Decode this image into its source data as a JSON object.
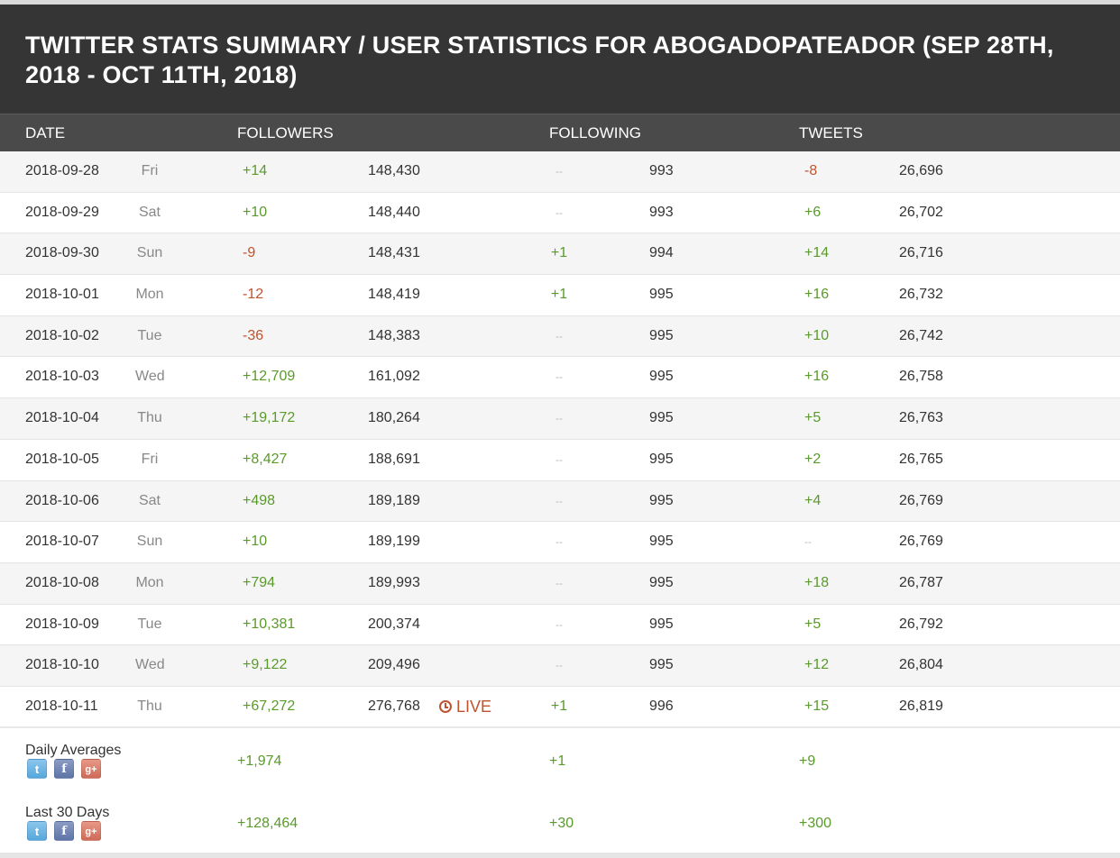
{
  "title": "TWITTER STATS SUMMARY / USER STATISTICS FOR ABOGADOPATEADOR (SEP 28TH, 2018 - OCT 11TH, 2018)",
  "headers": {
    "date": "DATE",
    "followers": "FOLLOWERS",
    "following": "FOLLOWING",
    "tweets": "TWEETS"
  },
  "rows": [
    {
      "date": "2018-09-28",
      "day": "Fri",
      "followers_change": "+14",
      "followers_total": "148,430",
      "following_change": "--",
      "following_total": "993",
      "tweets_change": "-8",
      "tweets_total": "26,696"
    },
    {
      "date": "2018-09-29",
      "day": "Sat",
      "followers_change": "+10",
      "followers_total": "148,440",
      "following_change": "--",
      "following_total": "993",
      "tweets_change": "+6",
      "tweets_total": "26,702"
    },
    {
      "date": "2018-09-30",
      "day": "Sun",
      "followers_change": "-9",
      "followers_total": "148,431",
      "following_change": "+1",
      "following_total": "994",
      "tweets_change": "+14",
      "tweets_total": "26,716"
    },
    {
      "date": "2018-10-01",
      "day": "Mon",
      "followers_change": "-12",
      "followers_total": "148,419",
      "following_change": "+1",
      "following_total": "995",
      "tweets_change": "+16",
      "tweets_total": "26,732"
    },
    {
      "date": "2018-10-02",
      "day": "Tue",
      "followers_change": "-36",
      "followers_total": "148,383",
      "following_change": "--",
      "following_total": "995",
      "tweets_change": "+10",
      "tweets_total": "26,742"
    },
    {
      "date": "2018-10-03",
      "day": "Wed",
      "followers_change": "+12,709",
      "followers_total": "161,092",
      "following_change": "--",
      "following_total": "995",
      "tweets_change": "+16",
      "tweets_total": "26,758"
    },
    {
      "date": "2018-10-04",
      "day": "Thu",
      "followers_change": "+19,172",
      "followers_total": "180,264",
      "following_change": "--",
      "following_total": "995",
      "tweets_change": "+5",
      "tweets_total": "26,763"
    },
    {
      "date": "2018-10-05",
      "day": "Fri",
      "followers_change": "+8,427",
      "followers_total": "188,691",
      "following_change": "--",
      "following_total": "995",
      "tweets_change": "+2",
      "tweets_total": "26,765"
    },
    {
      "date": "2018-10-06",
      "day": "Sat",
      "followers_change": "+498",
      "followers_total": "189,189",
      "following_change": "--",
      "following_total": "995",
      "tweets_change": "+4",
      "tweets_total": "26,769"
    },
    {
      "date": "2018-10-07",
      "day": "Sun",
      "followers_change": "+10",
      "followers_total": "189,199",
      "following_change": "--",
      "following_total": "995",
      "tweets_change": "--",
      "tweets_total": "26,769"
    },
    {
      "date": "2018-10-08",
      "day": "Mon",
      "followers_change": "+794",
      "followers_total": "189,993",
      "following_change": "--",
      "following_total": "995",
      "tweets_change": "+18",
      "tweets_total": "26,787"
    },
    {
      "date": "2018-10-09",
      "day": "Tue",
      "followers_change": "+10,381",
      "followers_total": "200,374",
      "following_change": "--",
      "following_total": "995",
      "tweets_change": "+5",
      "tweets_total": "26,792"
    },
    {
      "date": "2018-10-10",
      "day": "Wed",
      "followers_change": "+9,122",
      "followers_total": "209,496",
      "following_change": "--",
      "following_total": "995",
      "tweets_change": "+12",
      "tweets_total": "26,804"
    },
    {
      "date": "2018-10-11",
      "day": "Thu",
      "followers_change": "+67,272",
      "followers_total": "276,768",
      "following_change": "+1",
      "following_total": "996",
      "tweets_change": "+15",
      "tweets_total": "26,819",
      "live": "LIVE"
    }
  ],
  "summary": [
    {
      "label": "Daily Averages",
      "followers": "+1,974",
      "following": "+1",
      "tweets": "+9"
    },
    {
      "label": "Last 30 Days",
      "followers": "+128,464",
      "following": "+30",
      "tweets": "+300"
    }
  ],
  "share_icons": [
    "twitter-icon",
    "facebook-icon",
    "google-plus-icon"
  ],
  "colors": {
    "positive": "#5a9a2a",
    "negative": "#c0532f",
    "neutral": "#bbbbbb",
    "title_bg": "#353535",
    "header_bg": "#4a4a4a"
  }
}
